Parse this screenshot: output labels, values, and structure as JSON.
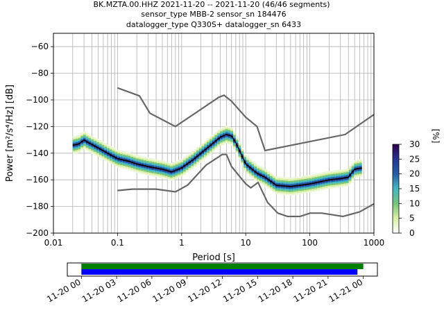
{
  "title_lines": [
    "BK.MZTA.00.HHZ   2021-11-20 -- 2021-11-20  (46/46 segments)",
    "sensor_type MBB-2 sensor_sn 184476",
    "datalogger_type Q330S+ datalogger_sn 6433"
  ],
  "colorbar": {
    "label": "[%]",
    "ticks": [
      "0",
      "5",
      "10",
      "15",
      "20",
      "25",
      "30"
    ],
    "colors": [
      "#ffffff",
      "#d9f0a3",
      "#78c679",
      "#41b6c4",
      "#225ea8",
      "#253494",
      "#2d004b"
    ]
  },
  "chart_data": [
    {
      "type": "heatmap",
      "xlabel": "Period [s]",
      "ylabel": "Power [m²/s⁴/Hz] [dB]",
      "xscale": "log",
      "xlim": [
        0.01,
        1000
      ],
      "ylim": [
        -200,
        -50
      ],
      "x_tick_labels": [
        "0.01",
        "0.1",
        "1",
        "10",
        "100",
        "1000"
      ],
      "y_tick_labels": [
        "−200",
        "−180",
        "−160",
        "−140",
        "−120",
        "−100",
        "−80",
        "−60"
      ],
      "grid": true,
      "series": [
        {
          "name": "",
          "role": "mode",
          "color": "#000000",
          "x": [
            0.02,
            0.025,
            0.03,
            0.035,
            0.05,
            0.07,
            0.1,
            0.15,
            0.2,
            0.3,
            0.5,
            0.7,
            1.0,
            1.5,
            2.0,
            3.0,
            4.0,
            5.0,
            6.0,
            7.0,
            10.0,
            15.0,
            20.0,
            30.0,
            50.0,
            100.0,
            200.0,
            300.0,
            400.0,
            500.0,
            650.0
          ],
          "y": [
            -134,
            -133,
            -130,
            -132,
            -136,
            -140,
            -144,
            -146,
            -148,
            -150,
            -152,
            -154,
            -151,
            -145,
            -140,
            -133,
            -128,
            -126,
            -127,
            -132,
            -148,
            -155,
            -158,
            -164,
            -165,
            -163,
            -160,
            -159,
            -158,
            -152,
            -151
          ]
        },
        {
          "name": "",
          "role": "NHNM",
          "color": "#666666",
          "x": [
            0.1,
            0.22,
            0.32,
            0.8,
            3.8,
            4.6,
            6.0,
            10.0,
            15.0,
            20.0,
            354.8,
            1000.0
          ],
          "y": [
            -91,
            -97,
            -110,
            -120,
            -98,
            -96.5,
            -101,
            -113,
            -120,
            -138,
            -126,
            -111
          ]
        },
        {
          "name": "",
          "role": "NLNM",
          "color": "#666666",
          "x": [
            0.1,
            0.17,
            0.4,
            0.8,
            1.24,
            2.4,
            4.3,
            5.0,
            6.0,
            10.0,
            12.0,
            15.6,
            21.9,
            31.6,
            45.0,
            70.0,
            101.0,
            154.0,
            328.0,
            600.0,
            1000.0
          ],
          "y": [
            -168,
            -167,
            -167,
            -169,
            -164,
            -149,
            -141,
            -141,
            -150,
            -163,
            -166,
            -162,
            -177,
            -185,
            -187.5,
            -187.5,
            -185,
            -185,
            -187.5,
            -184,
            -178
          ]
        }
      ]
    },
    {
      "type": "timeline",
      "x_tick_labels": [
        "11-20 00",
        "11-20 03",
        "11-20 06",
        "11-20 09",
        "11-20 12",
        "11-20 15",
        "11-20 18",
        "11-20 21",
        "11-21 00"
      ],
      "xlim_hours": [
        -1.2,
        25.2
      ],
      "bars": [
        {
          "color": "#008000",
          "start_hour": 0.0,
          "end_hour": 24.0
        },
        {
          "color": "#0000ff",
          "start_hour": 0.0,
          "end_hour": 23.5
        }
      ]
    }
  ]
}
